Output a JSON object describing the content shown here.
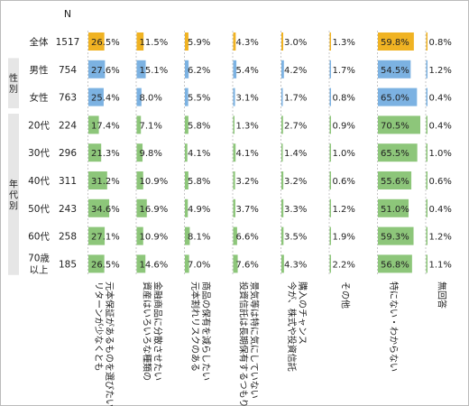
{
  "chart_data": {
    "type": "table",
    "n_label": "N",
    "group_labels": [
      {
        "text": "性別",
        "rows": [
          1,
          2
        ]
      },
      {
        "text": "年代別",
        "rows": [
          3,
          8
        ]
      }
    ],
    "rows": [
      {
        "label": "全体",
        "label2": "",
        "n": "1517",
        "kind": "total"
      },
      {
        "label": "男性",
        "label2": "",
        "n": "754",
        "kind": "male"
      },
      {
        "label": "女性",
        "label2": "",
        "n": "763",
        "kind": "female"
      },
      {
        "label": "20代",
        "label2": "",
        "n": "224",
        "kind": "age"
      },
      {
        "label": "30代",
        "label2": "",
        "n": "296",
        "kind": "age"
      },
      {
        "label": "40代",
        "label2": "",
        "n": "311",
        "kind": "age"
      },
      {
        "label": "50代",
        "label2": "",
        "n": "243",
        "kind": "age"
      },
      {
        "label": "60代",
        "label2": "",
        "n": "258",
        "kind": "age"
      },
      {
        "label": "70歳",
        "label2": "以上",
        "n": "185",
        "kind": "age"
      }
    ],
    "columns": [
      {
        "lines": [
          "元本保証があるものを選びたい",
          "リターンが少なくとも"
        ],
        "values": [
          26.5,
          27.6,
          25.4,
          17.4,
          21.3,
          31.2,
          34.6,
          27.1,
          26.5
        ]
      },
      {
        "lines": [
          "金融商品に分散させたい",
          "資産はいろいろな種類の"
        ],
        "values": [
          11.5,
          15.1,
          8.0,
          7.1,
          9.8,
          10.9,
          16.9,
          10.9,
          14.6
        ]
      },
      {
        "lines": [
          "商品の保有を減らしたい",
          "元本割れリスクのある"
        ],
        "values": [
          5.9,
          6.2,
          5.5,
          5.8,
          4.1,
          5.8,
          4.9,
          8.1,
          7.0
        ]
      },
      {
        "lines": [
          "景気等は特に気にしていない",
          "投資信託は長期保有するつもり。"
        ],
        "values": [
          4.3,
          5.4,
          3.1,
          1.3,
          4.1,
          3.2,
          3.7,
          6.6,
          7.6
        ]
      },
      {
        "lines": [
          "購入のチャンス",
          "今が、株式や投資信託"
        ],
        "values": [
          3.0,
          4.2,
          1.7,
          2.7,
          1.4,
          3.2,
          3.3,
          3.5,
          4.3
        ]
      },
      {
        "lines": [
          "その他"
        ],
        "values": [
          1.3,
          1.7,
          0.8,
          0.9,
          1.0,
          0.6,
          1.2,
          1.9,
          2.2
        ]
      },
      {
        "lines": [
          "特にない・わからない"
        ],
        "values": [
          59.8,
          54.5,
          65.0,
          70.5,
          65.5,
          55.6,
          51.0,
          59.3,
          56.8
        ]
      },
      {
        "lines": [
          "無回答"
        ],
        "values": [
          0.8,
          1.2,
          0.4,
          0.4,
          1.0,
          0.6,
          0.4,
          1.2,
          1.1
        ]
      }
    ],
    "value_format": "{v}%",
    "colors": {
      "total": "#f0b323",
      "male": "#7cb2e2",
      "female": "#7cb2e2",
      "age": "#8dc67a",
      "group_band": "#e6e6e6",
      "text": "#222222",
      "border": "#bbbbbb"
    }
  }
}
